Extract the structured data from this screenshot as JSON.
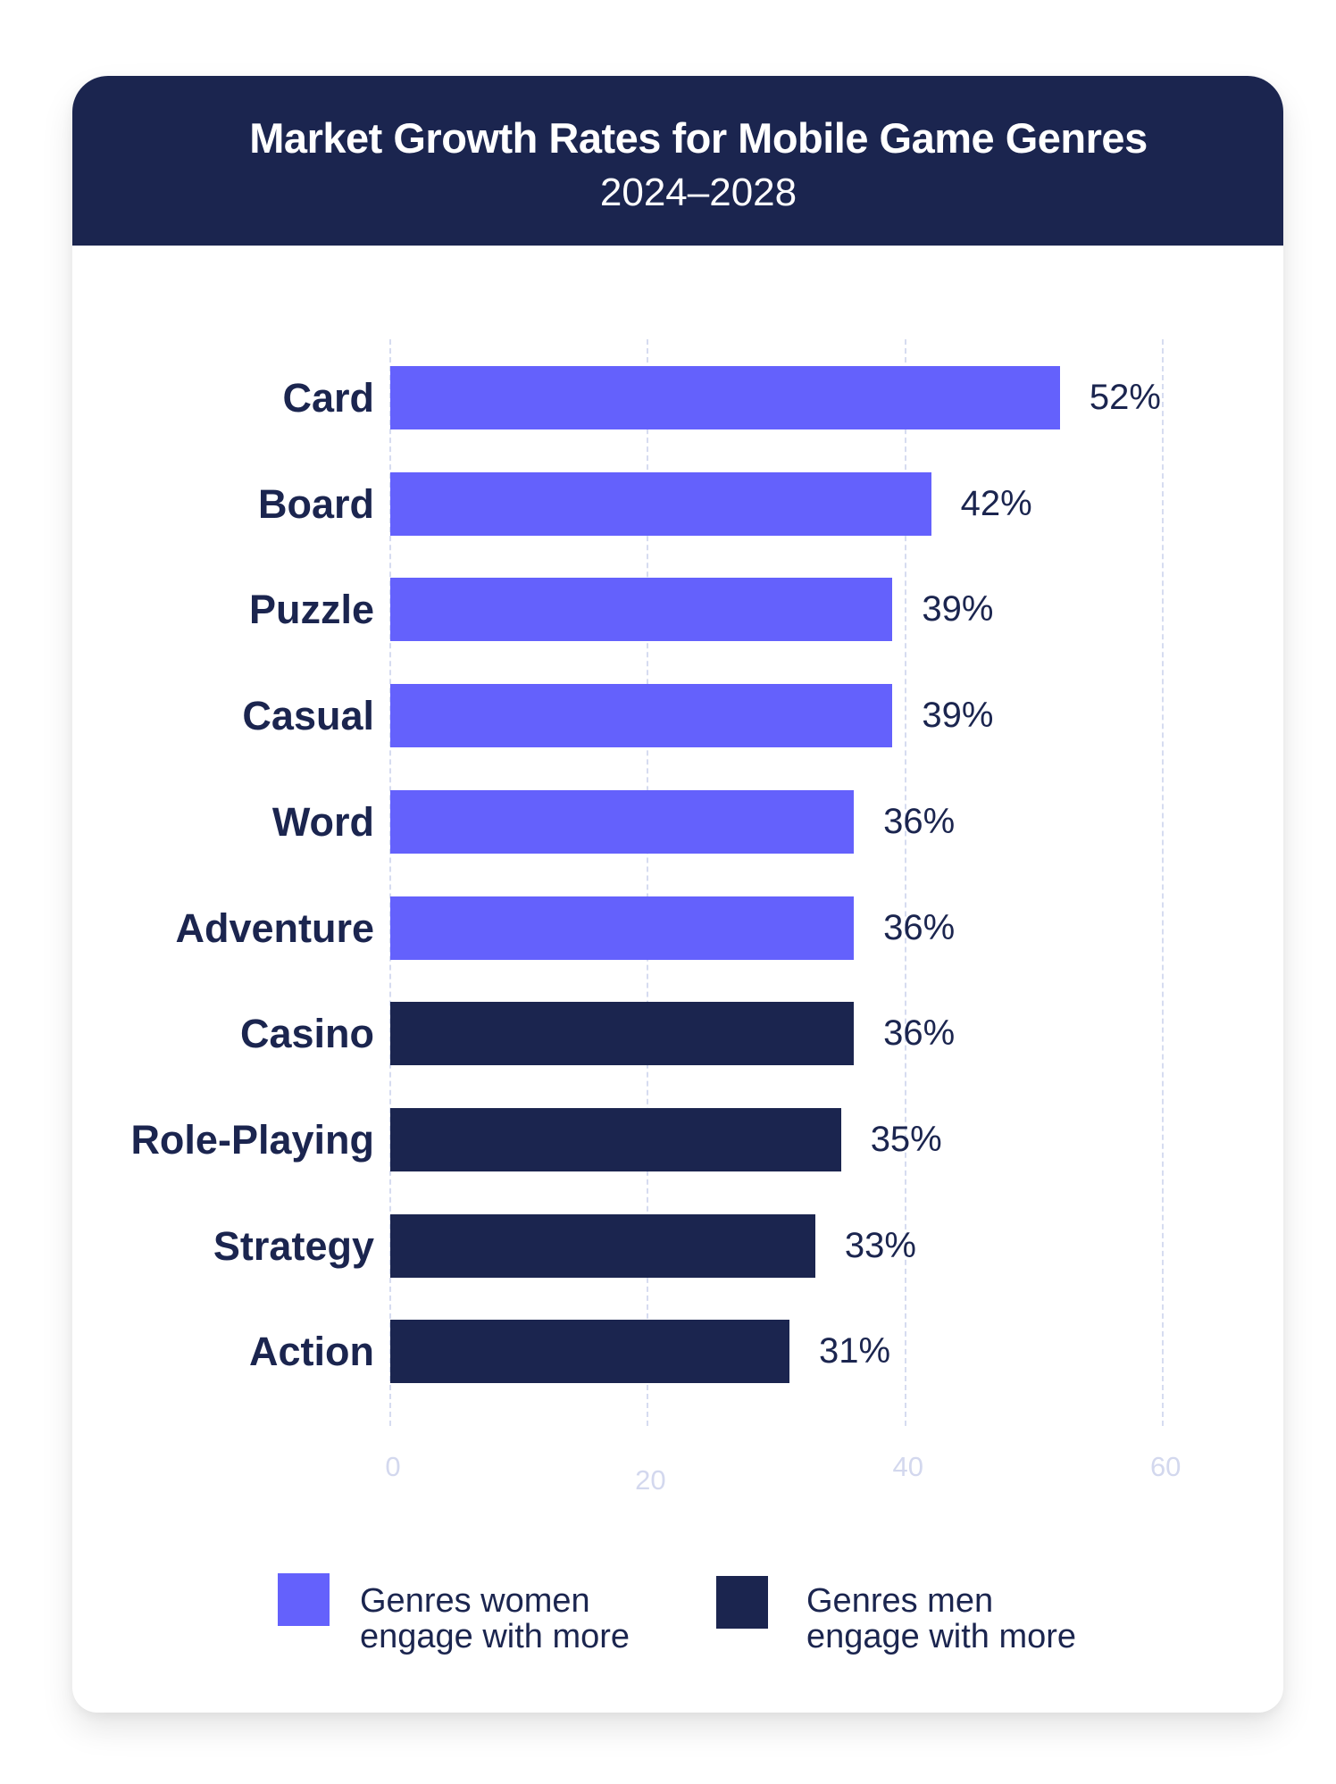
{
  "header": {
    "title": "Market Growth Rates for Mobile Game Genres",
    "subtitle": "2024–2028"
  },
  "colors": {
    "header_bg": "#1b254f",
    "women": "#6461fc",
    "men": "#1b254f",
    "gridline": "#d6dcf0",
    "tick_text": "#d3d8ee",
    "label_text": "#1b254f"
  },
  "axis": {
    "ticks": [
      {
        "label": "0",
        "value": 0
      },
      {
        "label": "20",
        "value": 20
      },
      {
        "label": "40",
        "value": 40
      },
      {
        "label": "60",
        "value": 60
      }
    ]
  },
  "bars": [
    {
      "label": "Card",
      "value": 52,
      "value_label": "52%",
      "group": "women"
    },
    {
      "label": "Board",
      "value": 42,
      "value_label": "42%",
      "group": "women"
    },
    {
      "label": "Puzzle",
      "value": 39,
      "value_label": "39%",
      "group": "women"
    },
    {
      "label": "Casual",
      "value": 39,
      "value_label": "39%",
      "group": "women"
    },
    {
      "label": "Word",
      "value": 36,
      "value_label": "36%",
      "group": "women"
    },
    {
      "label": "Adventure",
      "value": 36,
      "value_label": "36%",
      "group": "women"
    },
    {
      "label": "Casino",
      "value": 36,
      "value_label": "36%",
      "group": "men"
    },
    {
      "label": "Role-Playing",
      "value": 35,
      "value_label": "35%",
      "group": "men"
    },
    {
      "label": "Strategy",
      "value": 33,
      "value_label": "33%",
      "group": "men"
    },
    {
      "label": "Action",
      "value": 31,
      "value_label": "31%",
      "group": "men"
    }
  ],
  "legend": {
    "women": {
      "line1": "Genres women",
      "line2": "engage with more"
    },
    "men": {
      "line1": "Genres men",
      "line2": "engage with more"
    }
  },
  "chart_data": {
    "type": "bar",
    "orientation": "horizontal",
    "title": "Market Growth Rates for Mobile Game Genres",
    "subtitle": "2024–2028",
    "categories": [
      "Card",
      "Board",
      "Puzzle",
      "Casual",
      "Word",
      "Adventure",
      "Casino",
      "Role-Playing",
      "Strategy",
      "Action"
    ],
    "values": [
      52,
      42,
      39,
      39,
      36,
      36,
      36,
      35,
      33,
      31
    ],
    "value_labels": [
      "52%",
      "42%",
      "39%",
      "39%",
      "36%",
      "36%",
      "36%",
      "35%",
      "33%",
      "31%"
    ],
    "series": [
      {
        "name": "Genres women engage with more",
        "color": "#6461fc",
        "categories": [
          "Card",
          "Board",
          "Puzzle",
          "Casual",
          "Word",
          "Adventure"
        ],
        "values": [
          52,
          42,
          39,
          39,
          36,
          36
        ]
      },
      {
        "name": "Genres men engage with more",
        "color": "#1b254f",
        "categories": [
          "Casino",
          "Role-Playing",
          "Strategy",
          "Action"
        ],
        "values": [
          36,
          35,
          33,
          31
        ]
      }
    ],
    "xlabel": "",
    "ylabel": "",
    "xlim": [
      0,
      60
    ],
    "xticks": [
      0,
      20,
      40,
      60
    ],
    "grid": "vertical dashed",
    "legend_position": "bottom"
  }
}
